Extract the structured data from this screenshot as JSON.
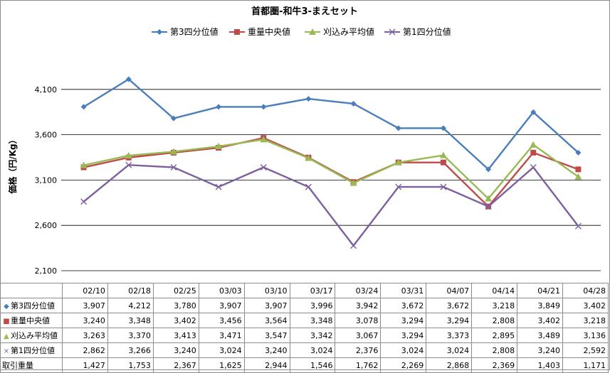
{
  "chart_data": {
    "type": "line",
    "title": "首都圏-和牛3-まえセット",
    "ylabel": "価格（円/Kg）",
    "ylim": [
      2100,
      4600
    ],
    "yticks": [
      2100,
      2600,
      3100,
      3600,
      4100
    ],
    "ytick_labels": [
      "2,100",
      "2,600",
      "3,100",
      "3,600",
      "4,100"
    ],
    "grid": true,
    "legend_position": "top",
    "categories": [
      "02/10",
      "02/18",
      "02/25",
      "03/03",
      "03/10",
      "03/17",
      "03/24",
      "03/31",
      "04/07",
      "04/14",
      "04/21",
      "04/28"
    ],
    "series": [
      {
        "name": "第3四分位値",
        "color": "#4a7ebb",
        "marker": "diamond",
        "values": [
          3907,
          4212,
          3780,
          3907,
          3907,
          3996,
          3942,
          3672,
          3672,
          3218,
          3849,
          3402
        ],
        "labels": [
          "3,907",
          "4,212",
          "3,780",
          "3,907",
          "3,907",
          "3,996",
          "3,942",
          "3,672",
          "3,672",
          "3,218",
          "3,849",
          "3,402"
        ]
      },
      {
        "name": "重量中央値",
        "color": "#be4b48",
        "marker": "square",
        "values": [
          3240,
          3348,
          3402,
          3456,
          3564,
          3348,
          3078,
          3294,
          3294,
          2808,
          3402,
          3218
        ],
        "labels": [
          "3,240",
          "3,348",
          "3,402",
          "3,456",
          "3,564",
          "3,348",
          "3,078",
          "3,294",
          "3,294",
          "2,808",
          "3,402",
          "3,218"
        ]
      },
      {
        "name": "刈込み平均値",
        "color": "#98b954",
        "marker": "triangle",
        "values": [
          3263,
          3370,
          3413,
          3471,
          3547,
          3342,
          3067,
          3294,
          3373,
          2895,
          3489,
          3136
        ],
        "labels": [
          "3,263",
          "3,370",
          "3,413",
          "3,471",
          "3,547",
          "3,342",
          "3,067",
          "3,294",
          "3,373",
          "2,895",
          "3,489",
          "3,136"
        ]
      },
      {
        "name": "第1四分位値",
        "color": "#7d60a0",
        "marker": "x",
        "values": [
          2862,
          3266,
          3240,
          3024,
          3240,
          3024,
          2376,
          3024,
          3024,
          2808,
          3240,
          2592
        ],
        "labels": [
          "2,862",
          "3,266",
          "3,240",
          "3,024",
          "3,240",
          "3,024",
          "2,376",
          "3,024",
          "3,024",
          "2,808",
          "3,240",
          "2,592"
        ]
      }
    ],
    "extra_rows": [
      {
        "name": "取引重量",
        "values": [
          1427,
          1753,
          2367,
          1625,
          2944,
          1546,
          1762,
          2269,
          2868,
          2369,
          1403,
          1171
        ],
        "labels": [
          "1,427",
          "1,753",
          "2,367",
          "1,625",
          "2,944",
          "1,546",
          "1,762",
          "2,269",
          "2,868",
          "2,369",
          "1,403",
          "1,171"
        ]
      }
    ]
  }
}
